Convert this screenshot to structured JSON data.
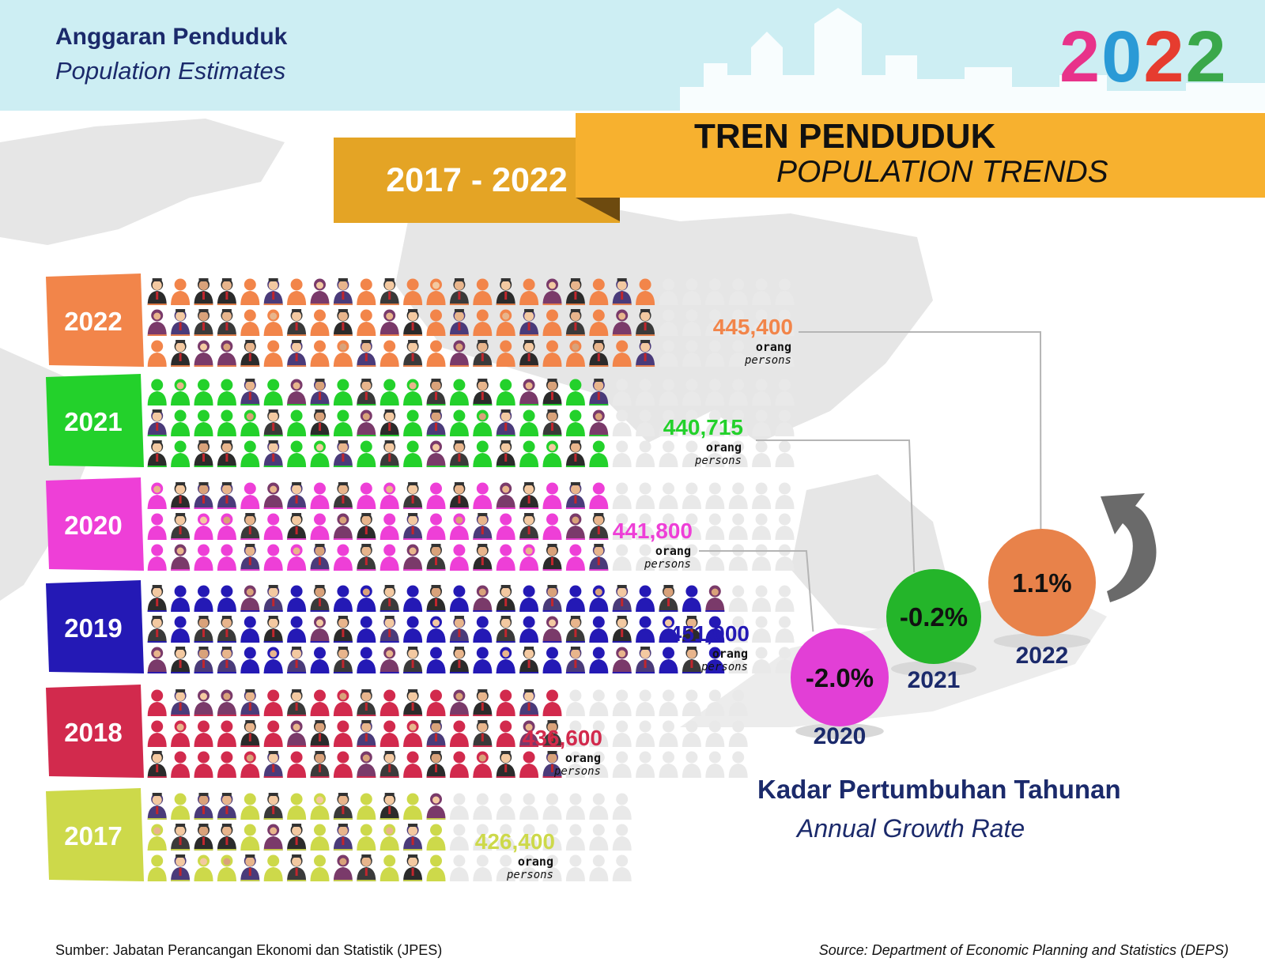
{
  "header": {
    "title_ms": "Anggaran Penduduk",
    "title_en": "Population Estimates",
    "year_logo": "2022",
    "year_logo_colors": [
      "#e8338a",
      "#2a9ad6",
      "#e63c2f",
      "#3aa84a"
    ]
  },
  "banner": {
    "range": "2017 - 2022",
    "title_ms": "TREN PENDUDUK",
    "title_en": "POPULATION TRENDS"
  },
  "chart_data": [
    {
      "type": "bar",
      "categories": [
        "2022",
        "2021",
        "2020",
        "2019",
        "2018",
        "2017"
      ],
      "values": [
        445400,
        440715,
        441800,
        451000,
        436600,
        426400
      ],
      "value_labels": [
        "445,400",
        "440,715",
        "441,800",
        "451,000",
        "436,600",
        "426,400"
      ],
      "unit_ms": "orang",
      "unit_en": "persons",
      "colors": [
        "#f2854a",
        "#23d12b",
        "#ee3fd7",
        "#2419b5",
        "#d22a4d",
        "#cdd94a"
      ],
      "orientation": "horizontal",
      "style": "pictogram"
    },
    {
      "type": "scatter",
      "categories": [
        "2020",
        "2021",
        "2022"
      ],
      "values": [
        -2.0,
        -0.2,
        1.1
      ],
      "value_labels": [
        "-2.0%",
        "-0.2%",
        "1.1%"
      ],
      "colors": [
        "#e23fd6",
        "#24b52a",
        "#e8824a"
      ],
      "title": "Kadar Pertumbuhan Tahunan",
      "subtitle": "Annual Growth Rate"
    }
  ],
  "footer": {
    "source_ms": "Sumber: Jabatan Perancangan Ekonomi dan Statistik (JPES)",
    "source_en": "Source: Department of Economic Planning and Statistics (DEPS)"
  }
}
